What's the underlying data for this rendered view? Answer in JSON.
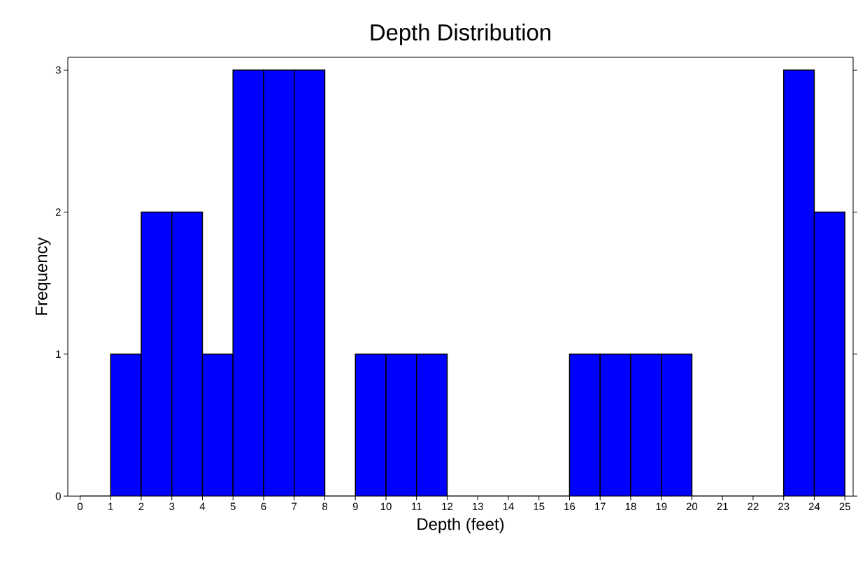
{
  "chart_data": {
    "type": "histogram",
    "title": "Depth Distribution",
    "xlabel": "Depth (feet)",
    "ylabel": "Frequency",
    "bins": [
      0,
      1,
      2,
      3,
      4,
      5,
      6,
      7,
      8,
      9,
      10,
      11,
      12,
      13,
      14,
      15,
      16,
      17,
      18,
      19,
      20,
      21,
      22,
      23,
      24,
      25
    ],
    "values": [
      0,
      1,
      2,
      2,
      1,
      3,
      3,
      3,
      0,
      1,
      1,
      1,
      0,
      0,
      0,
      0,
      1,
      1,
      1,
      1,
      0,
      0,
      0,
      3,
      2
    ],
    "color": "#0000ff",
    "xlim": [
      -0.4,
      25.27
    ],
    "ylim": [
      0,
      3.09
    ],
    "xticks": [
      0,
      1,
      2,
      3,
      4,
      5,
      6,
      7,
      8,
      9,
      10,
      11,
      12,
      13,
      14,
      15,
      16,
      17,
      18,
      19,
      20,
      21,
      22,
      23,
      24,
      25
    ],
    "yticks": [
      0,
      1,
      2,
      3
    ]
  }
}
